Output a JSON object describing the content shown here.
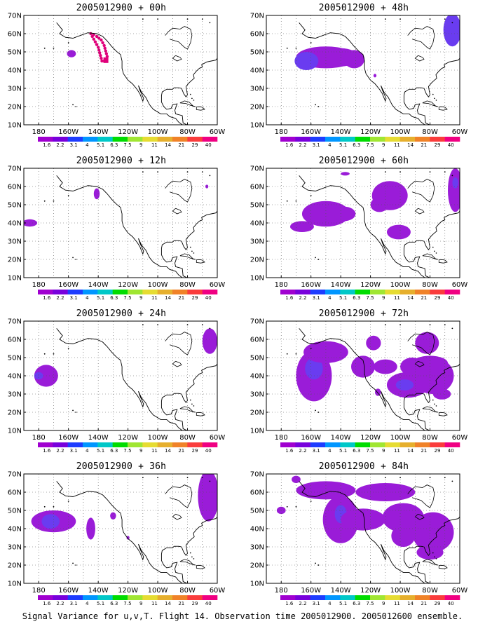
{
  "panels": [
    {
      "title": "2005012900 + 00h"
    },
    {
      "title": "2005012900 + 48h"
    },
    {
      "title": "2005012900 + 12h"
    },
    {
      "title": "2005012900 + 60h"
    },
    {
      "title": "2005012900 + 24h"
    },
    {
      "title": "2005012900 + 72h"
    },
    {
      "title": "2005012900 + 36h"
    },
    {
      "title": "2005012900 + 84h"
    }
  ],
  "axes": {
    "lat_labels": [
      "70N",
      "60N",
      "50N",
      "40N",
      "30N",
      "20N",
      "10N"
    ],
    "lon_labels": [
      "180",
      "160W",
      "140W",
      "120W",
      "100W",
      "80W",
      "60W"
    ],
    "lat_range": [
      10,
      70
    ],
    "lon_range": [
      -190,
      -60
    ],
    "grid": "dotted"
  },
  "colorbar": {
    "labels": [
      "1.6",
      "2.2",
      "3.1",
      "4",
      "5.1",
      "6.3",
      "7.5",
      "9",
      "11",
      "14",
      "21",
      "29",
      "40"
    ],
    "colors": [
      "#a000d0",
      "#7800dc",
      "#1e3cff",
      "#0096ff",
      "#00c8c8",
      "#00dc00",
      "#a0e632",
      "#e6dc32",
      "#e6af2d",
      "#f08228",
      "#fa3c3c",
      "#f00082"
    ]
  },
  "variance_fill_color": "#9a1cd8",
  "variance_core_color": "#6a3cf0",
  "flight_track_color": "#e0007a",
  "caption": "Signal Variance for u,v,T. Flight 14. Observation time 2005012900. 2005012600 ensemble."
}
